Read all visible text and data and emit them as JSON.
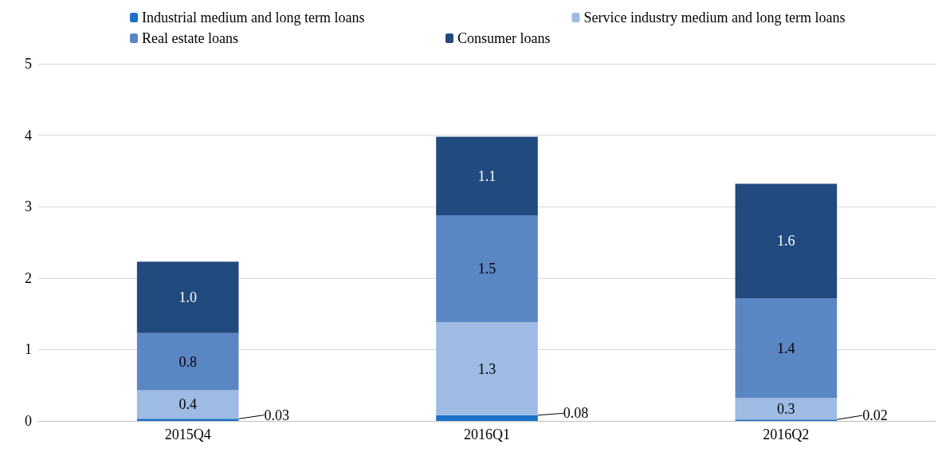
{
  "chart_data": {
    "type": "bar",
    "stacked": true,
    "categories": [
      "2015Q4",
      "2016Q1",
      "2016Q2"
    ],
    "series": [
      {
        "name": "Industrial medium and long term loans",
        "color": "#1a73c8",
        "values": [
          0.03,
          0.08,
          0.02
        ],
        "value_labels": [
          "0.03",
          "0.08",
          "0.02"
        ]
      },
      {
        "name": "Service industry medium and long term loans",
        "color": "#9dbbe3",
        "values": [
          0.4,
          1.3,
          0.3
        ],
        "value_labels": [
          "0.4",
          "1.3",
          "0.3"
        ]
      },
      {
        "name": "Real estate loans",
        "color": "#5b86c4",
        "values": [
          0.8,
          1.5,
          1.4
        ],
        "value_labels": [
          "0.8",
          "1.5",
          "1.4"
        ]
      },
      {
        "name": "Consumer loans",
        "color": "#214a7e",
        "values": [
          1.0,
          1.1,
          1.6
        ],
        "value_labels": [
          "1.0",
          "1.1",
          "1.6"
        ]
      }
    ],
    "ylim": [
      0,
      5
    ],
    "yticks": [
      0,
      1,
      2,
      3,
      4,
      5
    ],
    "grid": "y",
    "legend": "top"
  }
}
